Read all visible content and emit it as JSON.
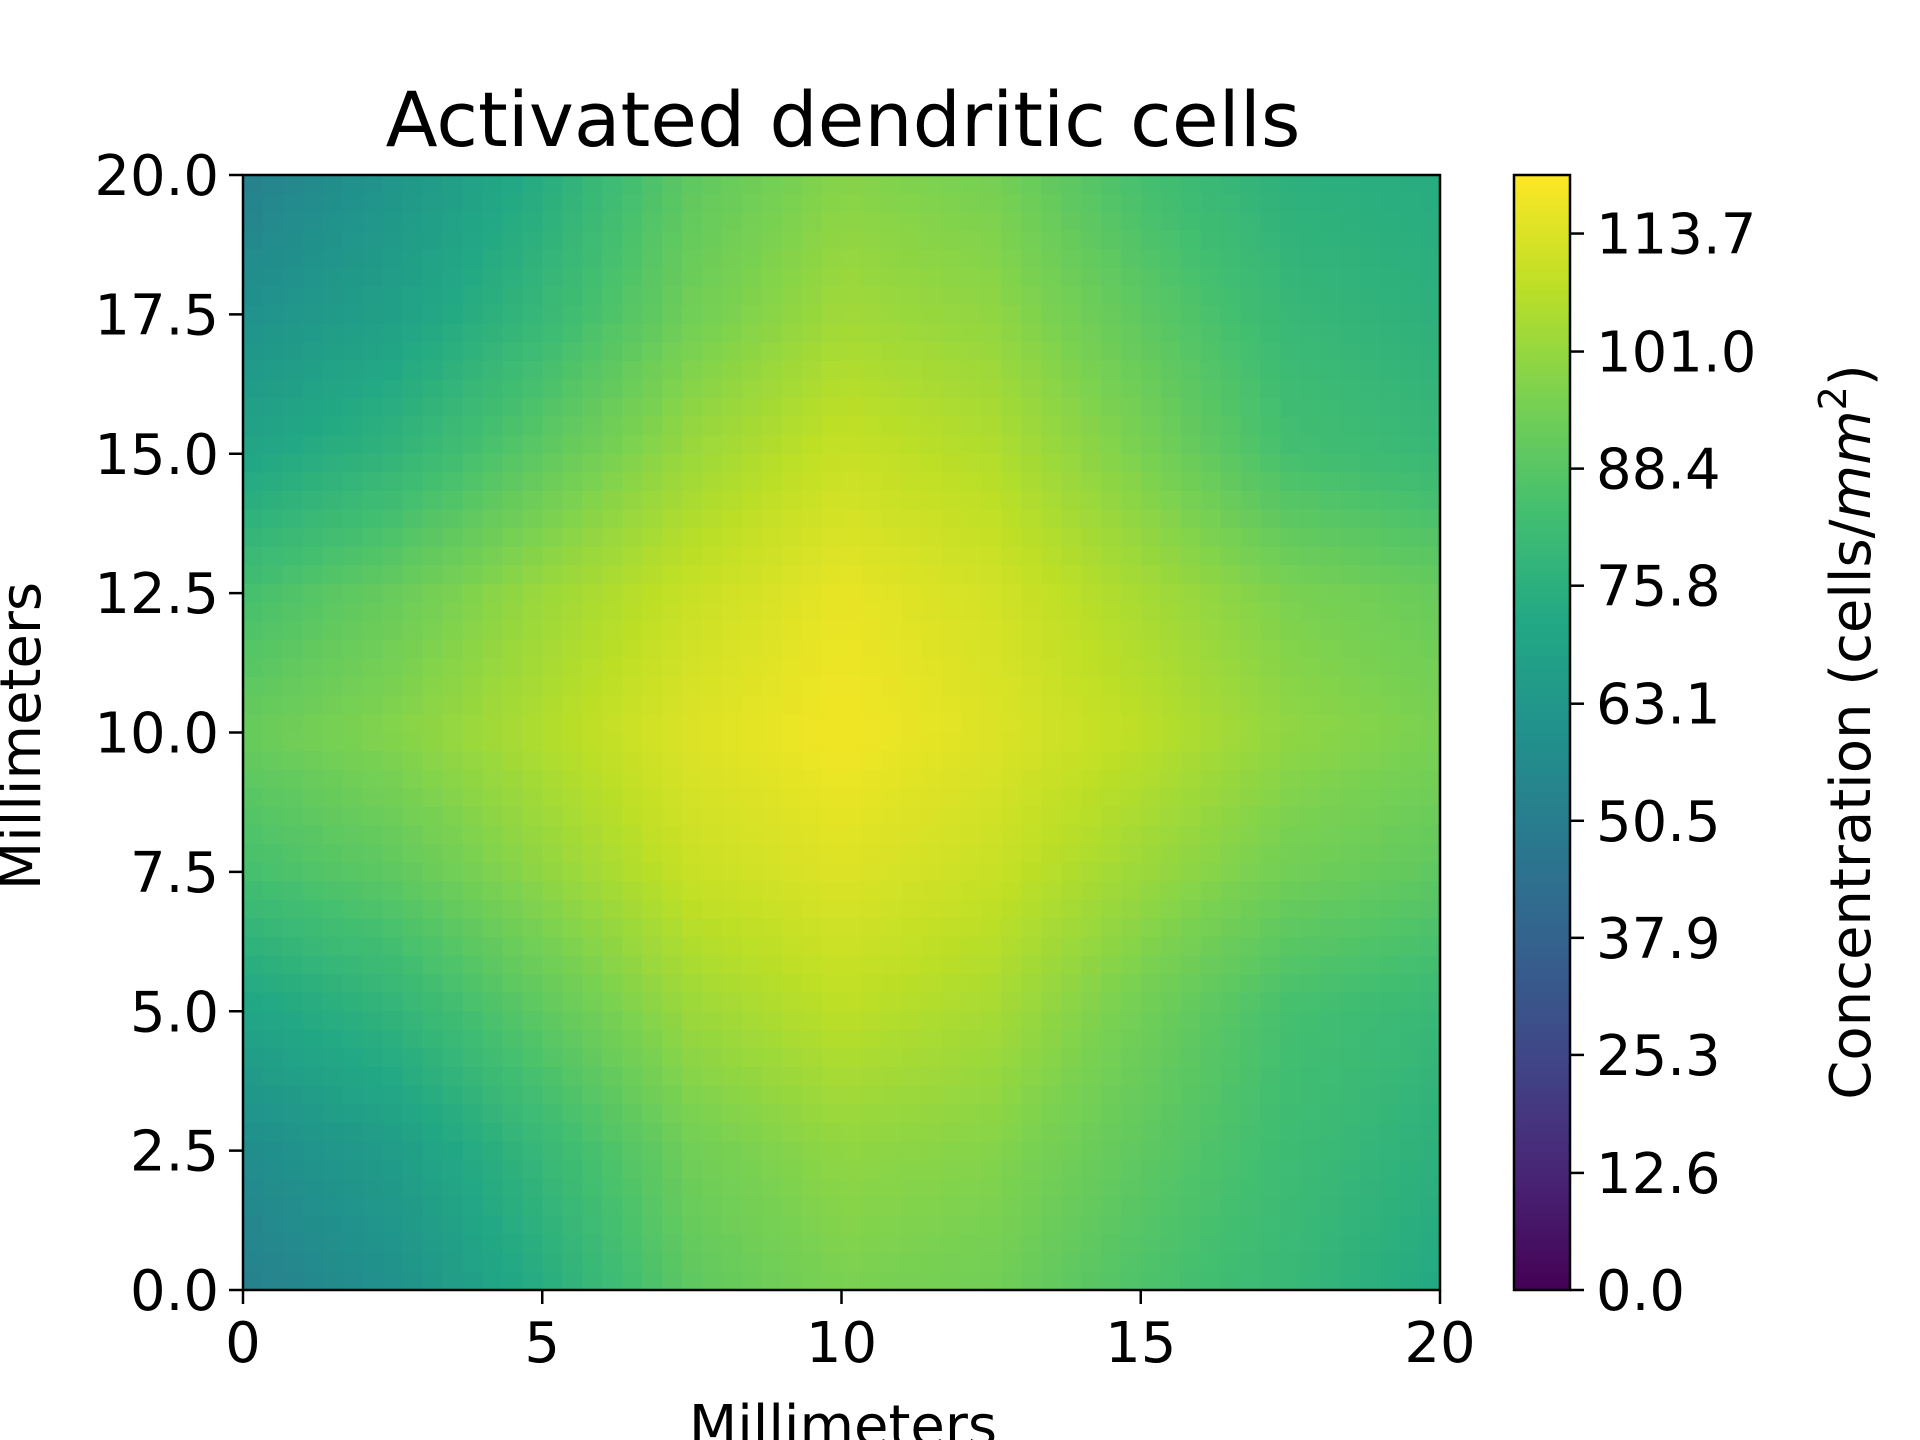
{
  "chart_data": {
    "type": "heatmap",
    "title": "Activated dendritic cells",
    "xlabel": "Millimeters",
    "ylabel": "Millimeters",
    "xlim": [
      0,
      20
    ],
    "ylim": [
      0,
      20
    ],
    "xticks": [
      "0",
      "5",
      "10",
      "15",
      "20"
    ],
    "yticks": [
      "0.0",
      "2.5",
      "5.0",
      "7.5",
      "10.0",
      "12.5",
      "15.0",
      "17.5",
      "20.0"
    ],
    "x_tick_values": [
      0,
      5,
      10,
      15,
      20
    ],
    "y_tick_values": [
      0,
      2.5,
      5,
      7.5,
      10,
      12.5,
      15,
      17.5,
      20
    ],
    "grid": false,
    "colormap": "viridis",
    "colorbar": {
      "label_main": "Concentration (cells/",
      "label_unit_var": "mm",
      "label_unit_exp": "2",
      "label_close": ")",
      "min": 0.0,
      "max": 120.0,
      "ticks": [
        "0.0",
        "12.6",
        "25.3",
        "37.9",
        "50.5",
        "63.1",
        "75.8",
        "88.4",
        "101.0",
        "113.7"
      ],
      "tick_values": [
        0.0,
        12.6,
        25.3,
        37.9,
        50.5,
        63.1,
        75.8,
        88.4,
        101.0,
        113.7
      ]
    },
    "grid_x": [
      0,
      2.5,
      5,
      7.5,
      10,
      12.5,
      15,
      17.5,
      20
    ],
    "grid_y": [
      20,
      17.5,
      15,
      12.5,
      10,
      7.5,
      5,
      2.5,
      0
    ],
    "values": [
      [
        52,
        62,
        74,
        90,
        98,
        95,
        84,
        76,
        74
      ],
      [
        60,
        68,
        80,
        94,
        103,
        100,
        90,
        80,
        76
      ],
      [
        70,
        78,
        90,
        102,
        110,
        106,
        96,
        84,
        80
      ],
      [
        84,
        92,
        102,
        110,
        116,
        112,
        104,
        96,
        92
      ],
      [
        92,
        98,
        106,
        114,
        118,
        114,
        108,
        100,
        96
      ],
      [
        84,
        90,
        100,
        110,
        114,
        110,
        102,
        94,
        90
      ],
      [
        70,
        78,
        90,
        102,
        108,
        104,
        94,
        84,
        80
      ],
      [
        58,
        66,
        80,
        94,
        100,
        98,
        90,
        82,
        76
      ],
      [
        52,
        60,
        74,
        90,
        96,
        94,
        86,
        80,
        72
      ]
    ]
  }
}
